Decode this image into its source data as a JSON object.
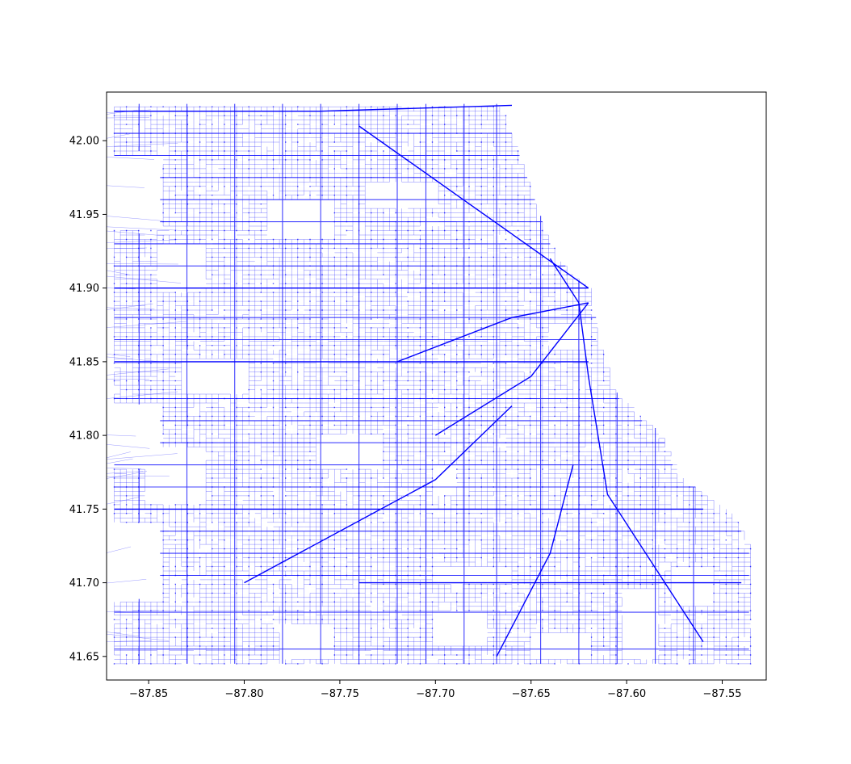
{
  "chart_data": {
    "type": "scatter",
    "style": "network-edges-and-nodes",
    "title": "",
    "xlabel": "",
    "ylabel": "",
    "xlim": [
      -87.872,
      -87.527
    ],
    "ylim": [
      41.634,
      42.033
    ],
    "xticks": [
      -87.85,
      -87.8,
      -87.75,
      -87.7,
      -87.65,
      -87.6,
      -87.55
    ],
    "xtick_labels": [
      "−87.85",
      "−87.80",
      "−87.75",
      "−87.70",
      "−87.65",
      "−87.60",
      "−87.55"
    ],
    "yticks": [
      41.65,
      41.7,
      41.75,
      41.8,
      41.85,
      41.9,
      41.95,
      42.0
    ],
    "ytick_labels": [
      "41.65",
      "41.70",
      "41.75",
      "41.80",
      "41.85",
      "41.90",
      "41.95",
      "42.00"
    ],
    "grid": false,
    "color": "#0000ff",
    "major_lines": [
      [
        [
          -87.868,
          42.02
        ],
        [
          -87.76,
          42.02
        ],
        [
          -87.66,
          42.024
        ]
      ],
      [
        [
          -87.74,
          42.01
        ],
        [
          -87.62,
          41.9
        ]
      ],
      [
        [
          -87.64,
          41.92
        ],
        [
          -87.625,
          41.89
        ],
        [
          -87.62,
          41.84
        ],
        [
          -87.61,
          41.76
        ],
        [
          -87.59,
          41.72
        ],
        [
          -87.56,
          41.66
        ]
      ],
      [
        [
          -87.7,
          41.8
        ],
        [
          -87.65,
          41.84
        ],
        [
          -87.62,
          41.89
        ]
      ],
      [
        [
          -87.8,
          41.7
        ],
        [
          -87.7,
          41.77
        ],
        [
          -87.66,
          41.82
        ]
      ],
      [
        [
          -87.72,
          41.85
        ],
        [
          -87.66,
          41.88
        ],
        [
          -87.62,
          41.89
        ]
      ],
      [
        [
          -87.668,
          41.65
        ],
        [
          -87.64,
          41.72
        ],
        [
          -87.628,
          41.78
        ]
      ],
      [
        [
          -87.868,
          41.9
        ],
        [
          -87.7,
          41.9
        ],
        [
          -87.62,
          41.9
        ]
      ],
      [
        [
          -87.868,
          41.85
        ],
        [
          -87.62,
          41.85
        ]
      ],
      [
        [
          -87.868,
          41.75
        ],
        [
          -87.56,
          41.75
        ]
      ],
      [
        [
          -87.74,
          41.7
        ],
        [
          -87.54,
          41.7
        ]
      ]
    ],
    "vertical_arterials_x": [
      -87.855,
      -87.83,
      -87.805,
      -87.78,
      -87.76,
      -87.74,
      -87.72,
      -87.705,
      -87.685,
      -87.668,
      -87.645,
      -87.625,
      -87.605,
      -87.585,
      -87.565
    ],
    "horizontal_arterials_y": [
      41.655,
      41.68,
      41.705,
      41.72,
      41.735,
      41.765,
      41.78,
      41.795,
      41.81,
      41.825,
      41.865,
      41.88,
      41.915,
      41.93,
      41.945,
      41.96,
      41.975,
      41.99,
      42.005
    ]
  }
}
